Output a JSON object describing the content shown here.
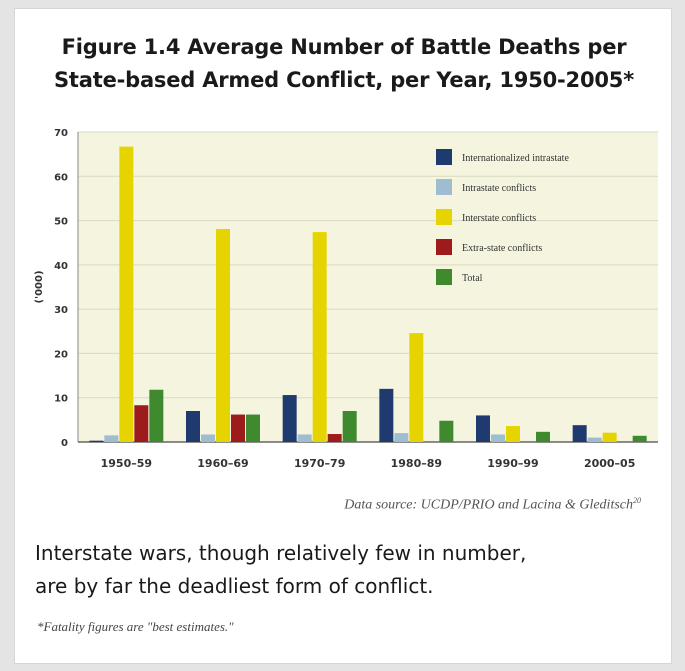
{
  "title_line1": "Figure 1.4 Average Number of Battle Deaths per",
  "title_line2": "State-based Armed Conflict, per Year, 1950-2005*",
  "source": "Data source: UCDP/PRIO and Lacina & Gleditsch",
  "source_ref": "20",
  "caption_line1": "Interstate wars, though relatively few in number,",
  "caption_line2": "are by far the deadliest form of conflict.",
  "footnote": "*Fatality figures are \"best estimates.\"",
  "colors": {
    "plot_bg": "#f5f5df",
    "grid": "#d9d9c2",
    "Internationalized intrastate": "#1f3a6e",
    "Intrastate conflicts": "#9fbdd0",
    "Interstate conflicts": "#e6d400",
    "Extra-state conflicts": "#9e1b1b",
    "Total": "#3f8a2f"
  },
  "chart_data": {
    "type": "bar",
    "title": "Figure 1.4 Average Number of Battle Deaths per State-based Armed Conflict, per Year, 1950-2005*",
    "xlabel": "",
    "ylabel": "('000)",
    "ylim": [
      0,
      70
    ],
    "yticks": [
      0,
      10,
      20,
      30,
      40,
      50,
      60,
      70
    ],
    "grid": true,
    "legend_position": "top-right",
    "categories": [
      "1950–59",
      "1960–69",
      "1970–79",
      "1980–89",
      "1990–99",
      "2000–05"
    ],
    "series": [
      {
        "name": "Internationalized intrastate",
        "values": [
          0.3,
          7,
          10.6,
          12,
          6,
          3.8
        ]
      },
      {
        "name": "Intrastate conflicts",
        "values": [
          1.5,
          1.7,
          1.7,
          2,
          1.7,
          1
        ]
      },
      {
        "name": "Interstate conflicts",
        "values": [
          66.7,
          48.1,
          47.4,
          24.6,
          3.6,
          2.1
        ]
      },
      {
        "name": "Extra-state conflicts",
        "values": [
          8.3,
          6.2,
          1.8,
          0,
          0,
          0
        ]
      },
      {
        "name": "Total",
        "values": [
          11.8,
          6.2,
          7,
          4.8,
          2.3,
          1.4
        ]
      }
    ]
  }
}
